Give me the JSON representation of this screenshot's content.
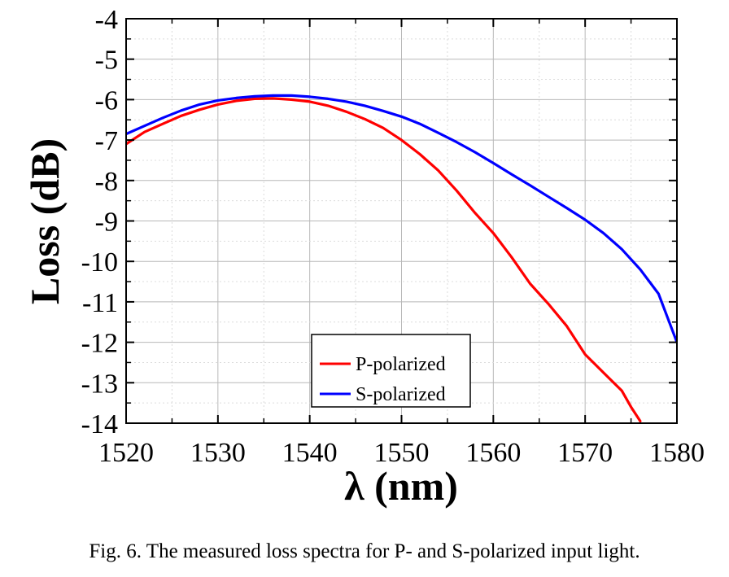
{
  "chart_data": {
    "type": "line",
    "xlabel": "λ (nm)",
    "ylabel": "Loss (dB)",
    "xlim": [
      1520,
      1580
    ],
    "ylim": [
      -14,
      -4
    ],
    "x_ticks": [
      "1520",
      "1530",
      "1540",
      "1550",
      "1560",
      "1570",
      "1580"
    ],
    "y_ticks": [
      "-4",
      "-5",
      "-6",
      "-7",
      "-8",
      "-9",
      "-10",
      "-11",
      "-12",
      "-13",
      "-14"
    ],
    "grid": true,
    "legend_position": "bottom-center",
    "series": [
      {
        "name": "P-polarized",
        "color": "#ff0000",
        "x": [
          1520,
          1521,
          1522,
          1524,
          1526,
          1528,
          1530,
          1532,
          1534,
          1536,
          1538,
          1540,
          1542,
          1544,
          1546,
          1548,
          1550,
          1552,
          1554,
          1556,
          1558,
          1560,
          1562,
          1564,
          1566,
          1568,
          1570,
          1572,
          1574,
          1575,
          1576
        ],
        "y": [
          -7.1,
          -6.95,
          -6.8,
          -6.6,
          -6.4,
          -6.25,
          -6.12,
          -6.03,
          -5.98,
          -5.97,
          -6.0,
          -6.05,
          -6.15,
          -6.3,
          -6.48,
          -6.7,
          -7.0,
          -7.35,
          -7.75,
          -8.25,
          -8.8,
          -9.3,
          -9.9,
          -10.55,
          -11.05,
          -11.6,
          -12.3,
          -12.75,
          -13.2,
          -13.6,
          -13.95
        ]
      },
      {
        "name": "S-polarized",
        "color": "#0000ff",
        "x": [
          1520,
          1522,
          1524,
          1526,
          1528,
          1530,
          1532,
          1534,
          1536,
          1538,
          1540,
          1542,
          1544,
          1546,
          1548,
          1550,
          1552,
          1554,
          1556,
          1558,
          1560,
          1562,
          1564,
          1566,
          1568,
          1570,
          1572,
          1574,
          1576,
          1578,
          1580
        ],
        "y": [
          -6.85,
          -6.65,
          -6.45,
          -6.27,
          -6.12,
          -6.02,
          -5.96,
          -5.92,
          -5.9,
          -5.9,
          -5.93,
          -5.98,
          -6.05,
          -6.15,
          -6.28,
          -6.42,
          -6.6,
          -6.82,
          -7.05,
          -7.3,
          -7.57,
          -7.85,
          -8.12,
          -8.4,
          -8.68,
          -8.97,
          -9.3,
          -9.7,
          -10.2,
          -10.8,
          -12.0
        ]
      }
    ]
  },
  "caption": "Fig. 6. The measured loss spectra for P- and S-polarized input light."
}
